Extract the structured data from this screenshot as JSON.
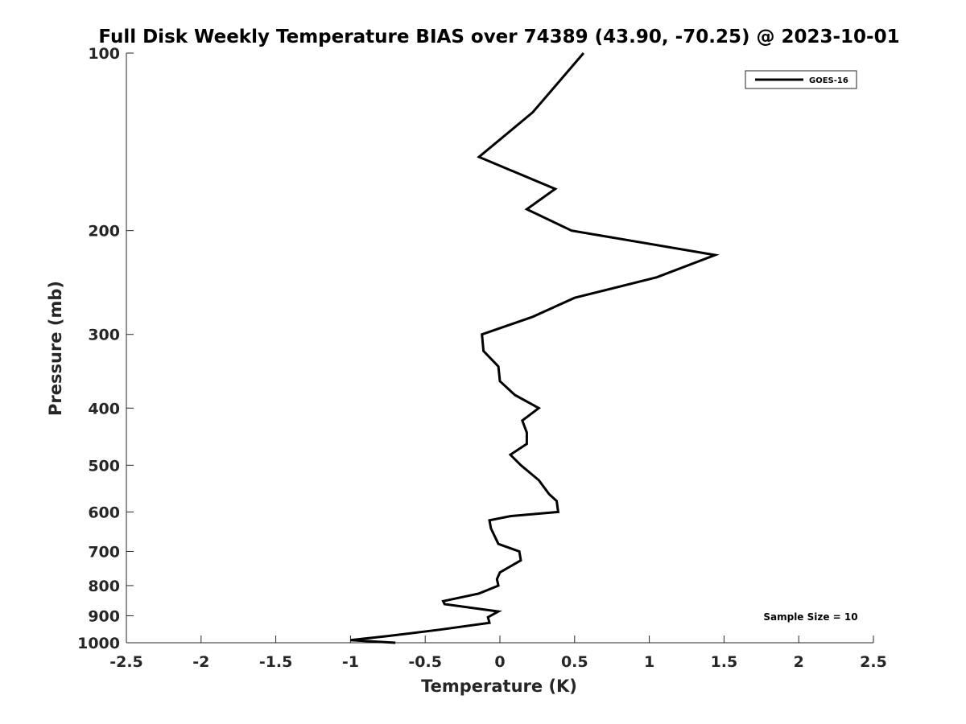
{
  "chart_data": {
    "type": "line",
    "title": "Full Disk Weekly Temperature BIAS over 74389 (43.90, -70.25) @ 2023-10-01",
    "xlabel": "Temperature (K)",
    "ylabel": "Pressure (mb)",
    "xlim": [
      -2.5,
      2.5
    ],
    "ylim": [
      100,
      1000
    ],
    "y_scale": "log",
    "y_reversed": true,
    "x_ticks": [
      -2.5,
      -2,
      -1.5,
      -1,
      -0.5,
      0,
      0.5,
      1,
      1.5,
      2,
      2.5
    ],
    "x_tick_labels": [
      "-2.5",
      "-2",
      "-1.5",
      "-1",
      "-0.5",
      "0",
      "0.5",
      "1",
      "1.5",
      "2",
      "2.5"
    ],
    "y_ticks": [
      100,
      200,
      300,
      400,
      500,
      600,
      700,
      800,
      900,
      1000
    ],
    "y_tick_labels": [
      "100",
      "200",
      "300",
      "400",
      "500",
      "600",
      "700",
      "800",
      "900",
      "1000"
    ],
    "grid": false,
    "legend": {
      "position": "top-right",
      "entries": [
        "GOES-16"
      ]
    },
    "annotation": "Sample Size = 10",
    "series": [
      {
        "name": "GOES-16",
        "color": "#000000",
        "points": [
          {
            "x": 0.56,
            "p": 100
          },
          {
            "x": 0.22,
            "p": 126
          },
          {
            "x": -0.14,
            "p": 150
          },
          {
            "x": 0.37,
            "p": 170
          },
          {
            "x": 0.18,
            "p": 184
          },
          {
            "x": 0.48,
            "p": 200
          },
          {
            "x": 1.44,
            "p": 220
          },
          {
            "x": 1.05,
            "p": 240
          },
          {
            "x": 0.5,
            "p": 260
          },
          {
            "x": 0.22,
            "p": 280
          },
          {
            "x": -0.12,
            "p": 300
          },
          {
            "x": -0.11,
            "p": 320
          },
          {
            "x": -0.01,
            "p": 340
          },
          {
            "x": 0.0,
            "p": 360
          },
          {
            "x": 0.1,
            "p": 380
          },
          {
            "x": 0.26,
            "p": 400
          },
          {
            "x": 0.15,
            "p": 420
          },
          {
            "x": 0.18,
            "p": 440
          },
          {
            "x": 0.18,
            "p": 460
          },
          {
            "x": 0.07,
            "p": 480
          },
          {
            "x": 0.14,
            "p": 500
          },
          {
            "x": 0.26,
            "p": 530
          },
          {
            "x": 0.33,
            "p": 560
          },
          {
            "x": 0.38,
            "p": 575
          },
          {
            "x": 0.39,
            "p": 600
          },
          {
            "x": 0.07,
            "p": 610
          },
          {
            "x": -0.07,
            "p": 620
          },
          {
            "x": -0.06,
            "p": 640
          },
          {
            "x": -0.01,
            "p": 680
          },
          {
            "x": 0.13,
            "p": 700
          },
          {
            "x": 0.14,
            "p": 725
          },
          {
            "x": 0.0,
            "p": 760
          },
          {
            "x": -0.02,
            "p": 780
          },
          {
            "x": -0.01,
            "p": 800
          },
          {
            "x": -0.14,
            "p": 825
          },
          {
            "x": -0.38,
            "p": 850
          },
          {
            "x": -0.37,
            "p": 860
          },
          {
            "x": -0.01,
            "p": 885
          },
          {
            "x": -0.08,
            "p": 905
          },
          {
            "x": -0.07,
            "p": 925
          },
          {
            "x": -0.4,
            "p": 950
          },
          {
            "x": -0.76,
            "p": 975
          },
          {
            "x": -1.0,
            "p": 990
          },
          {
            "x": -0.7,
            "p": 1000
          }
        ]
      }
    ]
  }
}
